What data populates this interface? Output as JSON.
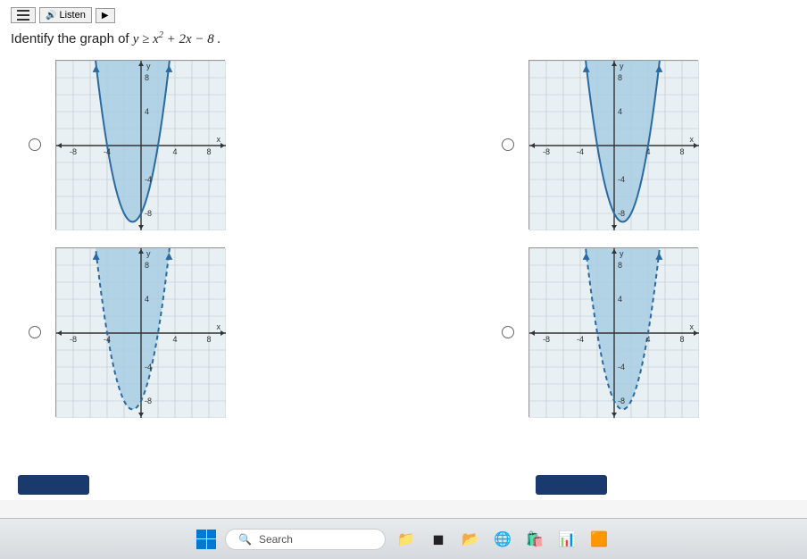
{
  "toolbar": {
    "listen_label": "Listen"
  },
  "question": {
    "prefix": "Identify the graph of ",
    "expr_html": "y ≥ x² + 2x − 8 ."
  },
  "graph": {
    "xmin": -10,
    "xmax": 10,
    "ymin": -10,
    "ymax": 10,
    "grid_step": 2,
    "axis_color": "#333333",
    "grid_color": "#b8c4cc",
    "bg_color": "#e8f0f4",
    "shade_color": "#a8cde2",
    "curve_color": "#2a6aa0",
    "tick_labels_x": [
      "-8",
      "-4",
      "4",
      "8"
    ],
    "tick_labels_y": [
      "8",
      "4",
      "-4",
      "-8"
    ],
    "tick_fontsize": 9,
    "axis_label_fontsize": 10,
    "parabola": {
      "a": 1,
      "b": 2,
      "c": -8
    },
    "options": [
      {
        "id": "A",
        "vertex_shift": -1,
        "shade": "inside",
        "boundary": "solid"
      },
      {
        "id": "B",
        "vertex_shift": 1,
        "shade": "inside",
        "boundary": "solid"
      },
      {
        "id": "C",
        "vertex_shift": -1,
        "shade": "inside",
        "boundary": "dashed"
      },
      {
        "id": "D",
        "vertex_shift": 1,
        "shade": "inside",
        "boundary": "dashed"
      }
    ]
  },
  "taskbar": {
    "search_placeholder": "Search"
  }
}
